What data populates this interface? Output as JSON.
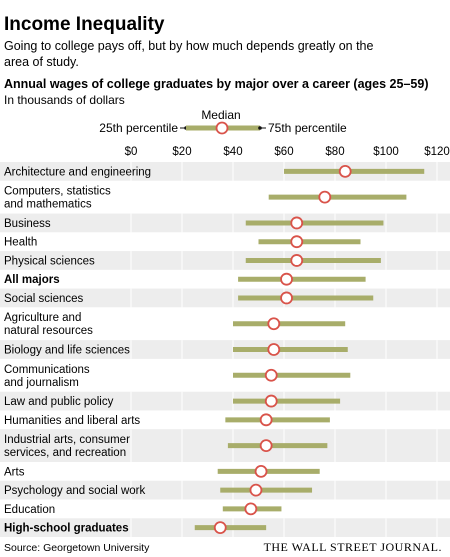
{
  "header": {
    "title": "Income Inequality",
    "subtitle_line1": "Going to college pays off, but by how much depends greatly on the",
    "subtitle_line2": "area of study.",
    "chart_title": "Annual wages of college graduates by major over a career (ages 25–59)",
    "unit_note": "In thousands of dollars"
  },
  "legend": {
    "median": "Median",
    "p25": "25th percentile",
    "p75": "75th percentile"
  },
  "footer": {
    "source": "Source: Georgetown University",
    "publisher": "THE WALL STREET JOURNAL."
  },
  "colors": {
    "bar": "#a8ad6a",
    "median_stroke": "#d9534a",
    "stripe": "#ededed"
  },
  "chart_data": {
    "type": "range",
    "title": "Annual wages of college graduates by major over a career (ages 25–59)",
    "xlim": [
      0,
      120
    ],
    "x_ticks": [
      "$0",
      "$20",
      "$40",
      "$60",
      "$80",
      "$100",
      "$120"
    ],
    "x_tick_values": [
      0,
      20,
      40,
      60,
      80,
      100,
      120
    ],
    "series": [
      {
        "label": [
          "Architecture and engineering"
        ],
        "p25": 60,
        "median": 84,
        "p75": 115
      },
      {
        "label": [
          "Computers, statistics",
          "and mathematics"
        ],
        "p25": 54,
        "median": 76,
        "p75": 108
      },
      {
        "label": [
          "Business"
        ],
        "p25": 45,
        "median": 65,
        "p75": 99
      },
      {
        "label": [
          "Health"
        ],
        "p25": 50,
        "median": 65,
        "p75": 90
      },
      {
        "label": [
          "Physical sciences"
        ],
        "p25": 45,
        "median": 65,
        "p75": 98
      },
      {
        "label": [
          "All majors"
        ],
        "p25": 42,
        "median": 61,
        "p75": 92,
        "bold": true
      },
      {
        "label": [
          "Social sciences"
        ],
        "p25": 42,
        "median": 61,
        "p75": 95
      },
      {
        "label": [
          "Agriculture and",
          "natural resources"
        ],
        "p25": 40,
        "median": 56,
        "p75": 84
      },
      {
        "label": [
          "Biology and life sciences"
        ],
        "p25": 40,
        "median": 56,
        "p75": 85
      },
      {
        "label": [
          "Communications",
          "and journalism"
        ],
        "p25": 40,
        "median": 55,
        "p75": 86
      },
      {
        "label": [
          "Law and public policy"
        ],
        "p25": 40,
        "median": 55,
        "p75": 82
      },
      {
        "label": [
          "Humanities and liberal arts"
        ],
        "p25": 37,
        "median": 53,
        "p75": 78
      },
      {
        "label": [
          "Industrial arts, consumer",
          "services, and recreation"
        ],
        "p25": 38,
        "median": 53,
        "p75": 77
      },
      {
        "label": [
          "Arts"
        ],
        "p25": 34,
        "median": 51,
        "p75": 74
      },
      {
        "label": [
          "Psychology and social work"
        ],
        "p25": 35,
        "median": 49,
        "p75": 71
      },
      {
        "label": [
          "Education"
        ],
        "p25": 36,
        "median": 47,
        "p75": 59
      },
      {
        "label": [
          "High-school graduates"
        ],
        "p25": 25,
        "median": 35,
        "p75": 53,
        "bold": true
      }
    ]
  }
}
